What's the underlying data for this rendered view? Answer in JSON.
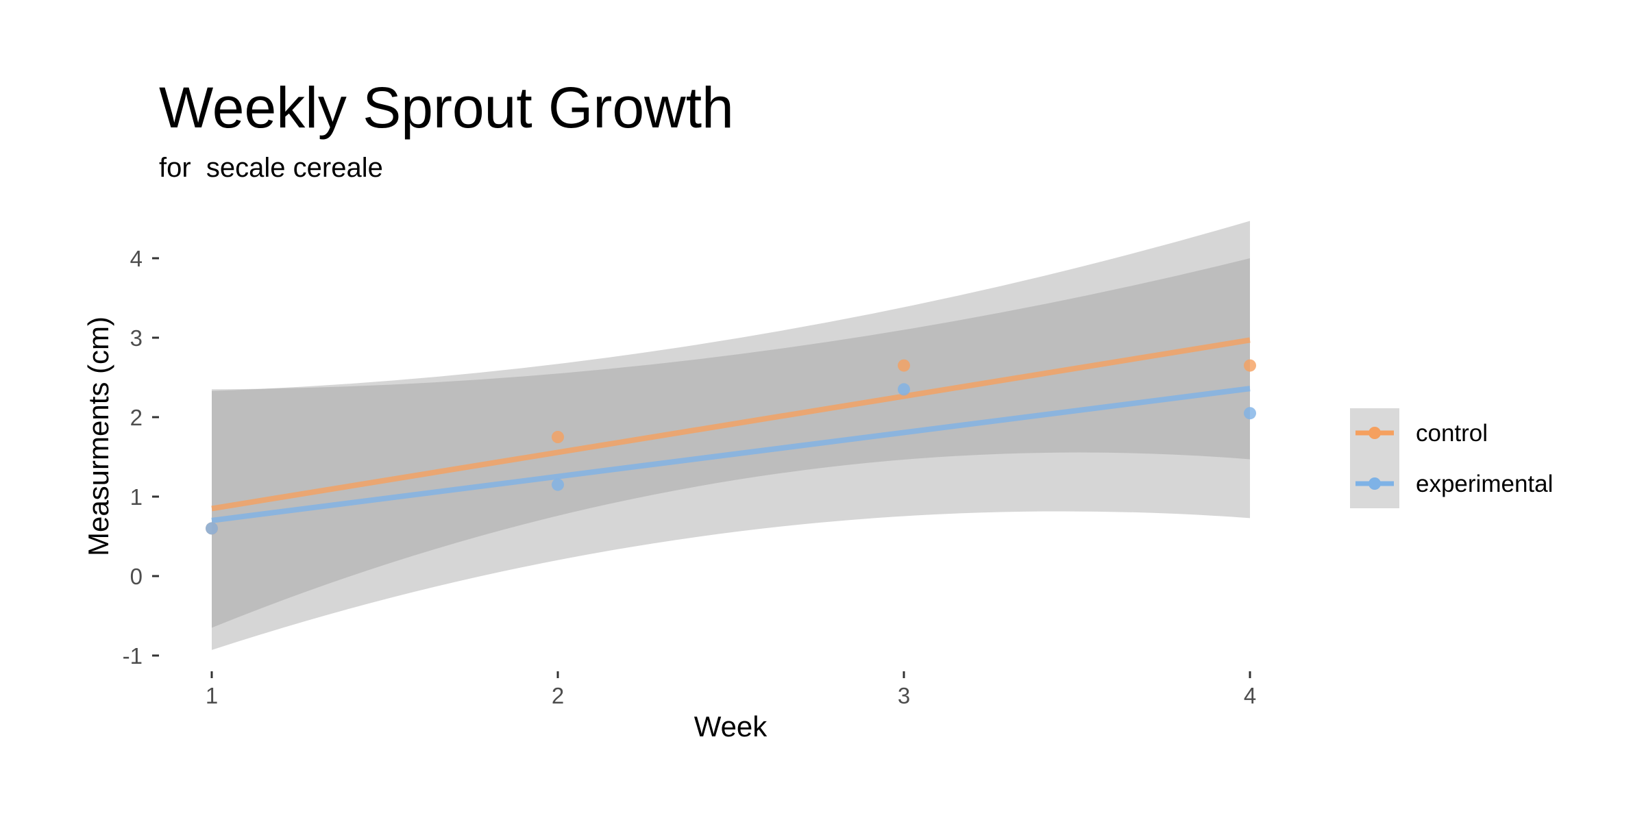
{
  "chart_data": {
    "type": "scatter",
    "title": "Weekly Sprout Growth",
    "subtitle": "for  secale cereale",
    "xlabel": "Week",
    "ylabel": "Measurments (cm)",
    "xlim": [
      1,
      4
    ],
    "ylim": [
      -1,
      4.5
    ],
    "x_ticks": [
      1,
      2,
      3,
      4
    ],
    "y_ticks": [
      -1,
      0,
      1,
      2,
      3,
      4
    ],
    "grid": false,
    "legend_position": "right",
    "series": [
      {
        "name": "control",
        "color": "#f5a05f",
        "x": [
          1,
          2,
          3,
          4
        ],
        "y": [
          0.6,
          1.75,
          2.65,
          2.65
        ],
        "fit": {
          "start": 0.85,
          "end": 2.97
        },
        "ci_band": {
          "lower": [
            -0.65,
            1.47
          ],
          "upper": [
            2.35,
            4.0
          ],
          "lower_mid": 1.2,
          "upper_mid": 2.78
        }
      },
      {
        "name": "experimental",
        "color": "#7eb2e6",
        "x": [
          1,
          2,
          3,
          4
        ],
        "y": [
          0.6,
          1.15,
          2.35,
          2.05
        ],
        "fit": {
          "start": 0.7,
          "end": 2.36
        },
        "ci_band": {
          "lower": [
            -0.93,
            0.73
          ],
          "upper": [
            2.33,
            4.47
          ],
          "lower_mid": 0.55,
          "upper_mid": 2.98
        }
      }
    ]
  }
}
